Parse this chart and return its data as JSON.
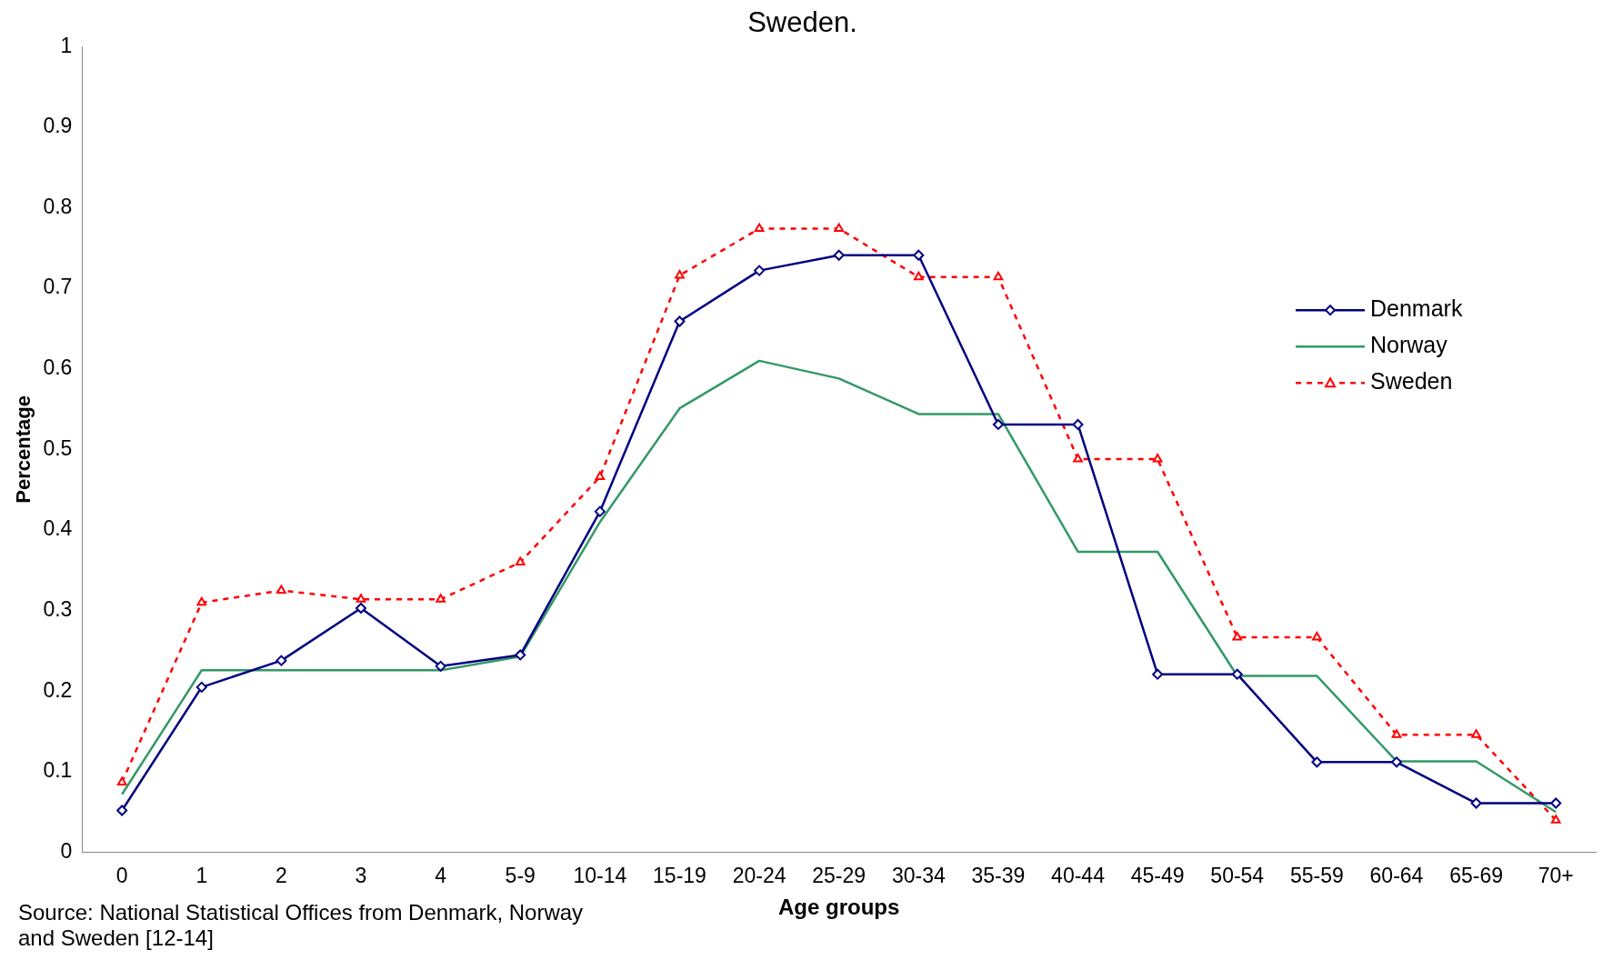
{
  "chart_data": {
    "type": "line",
    "title": "Sweden.",
    "xlabel": "Age groups",
    "ylabel": "Percentage",
    "categories": [
      "0",
      "1",
      "2",
      "3",
      "4",
      "5-9",
      "10-14",
      "15-19",
      "20-24",
      "25-29",
      "30-34",
      "35-39",
      "40-44",
      "45-49",
      "50-54",
      "55-59",
      "60-64",
      "65-69",
      "70+"
    ],
    "series": [
      {
        "name": "Denmark",
        "color": "#000080",
        "marker": "diamond",
        "line_style": "solid",
        "values": [
          0.052,
          0.205,
          0.238,
          0.303,
          0.231,
          0.245,
          0.423,
          0.659,
          0.722,
          0.741,
          0.741,
          0.531,
          0.531,
          0.221,
          0.221,
          0.112,
          0.112,
          0.061,
          0.061
        ]
      },
      {
        "name": "Norway",
        "color": "#339966",
        "marker": "none",
        "line_style": "solid",
        "values": [
          0.072,
          0.226,
          0.226,
          0.226,
          0.226,
          0.243,
          0.41,
          0.551,
          0.61,
          0.588,
          0.544,
          0.544,
          0.373,
          0.373,
          0.219,
          0.219,
          0.113,
          0.113,
          0.05
        ]
      },
      {
        "name": "Sweden",
        "color": "#ff0000",
        "marker": "triangle",
        "line_style": "dashed",
        "values": [
          0.087,
          0.31,
          0.325,
          0.314,
          0.314,
          0.36,
          0.466,
          0.716,
          0.774,
          0.774,
          0.714,
          0.714,
          0.488,
          0.488,
          0.267,
          0.267,
          0.146,
          0.146,
          0.04
        ]
      }
    ],
    "ylim": [
      0,
      1
    ],
    "yticks": [
      0,
      0.1,
      0.2,
      0.3,
      0.4,
      0.5,
      0.6,
      0.7,
      0.8,
      0.9,
      1
    ],
    "grid": false,
    "legend": "right",
    "annotations": [
      "Source: National Statistical Offices from Denmark, Norway and Sweden [12-14]"
    ]
  }
}
